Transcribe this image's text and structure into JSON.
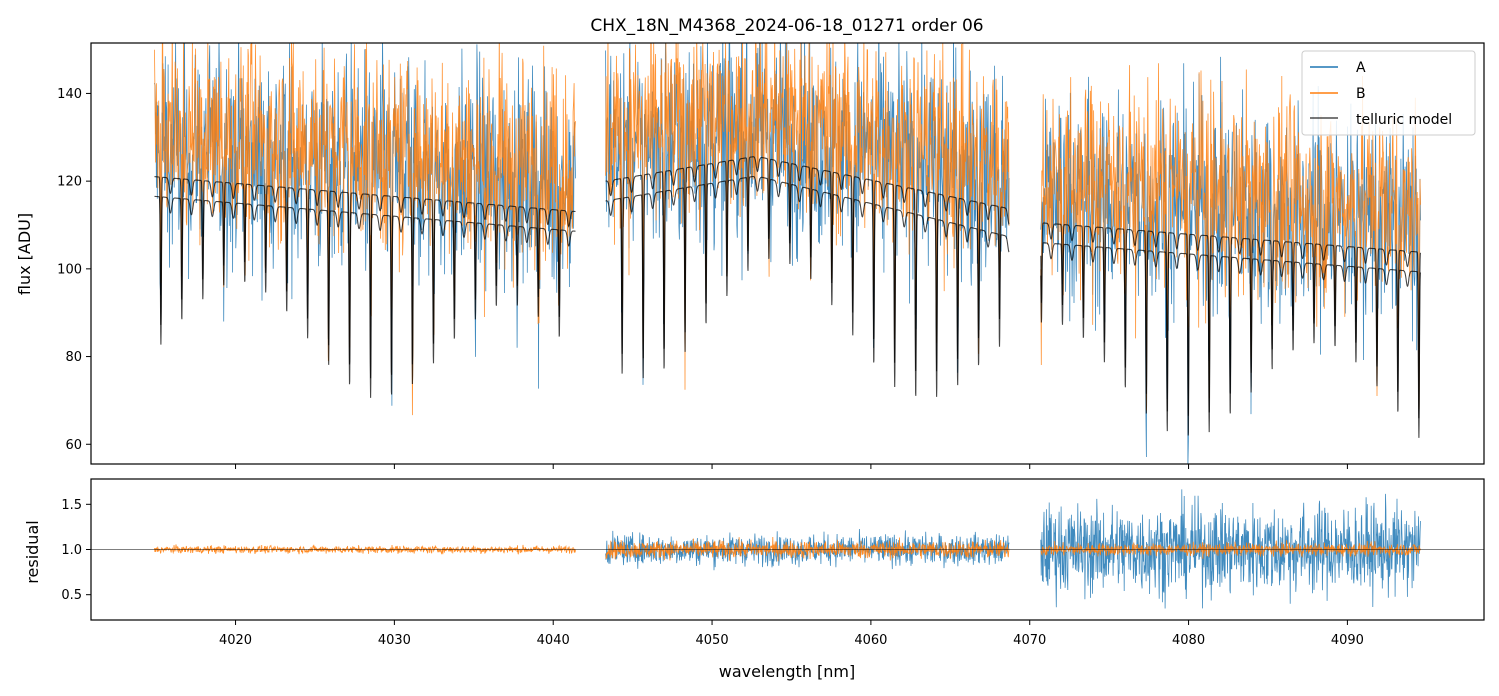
{
  "chart_data": [
    {
      "panel": "top",
      "type": "line",
      "title": "CHX_18N_M4368_2024-06-18_01271  order 06",
      "xlabel": "",
      "ylabel": "flux [ADU]",
      "xlim": [
        4010.9,
        4098.6
      ],
      "ylim": [
        55.5,
        151.5
      ],
      "yticks": [
        60,
        80,
        100,
        120,
        140
      ],
      "xticks": [
        4020,
        4030,
        4040,
        4050,
        4060,
        4070,
        4080,
        4090
      ],
      "segments": [
        [
          4014.9,
          4041.4
        ],
        [
          4043.3,
          4068.7
        ],
        [
          4070.7,
          4094.6
        ]
      ],
      "series": [
        {
          "name": "A",
          "color": "#1f77b4",
          "description": "noisy spectrum, roughly 60-150 ADU"
        },
        {
          "name": "B",
          "color": "#ff7f0e",
          "description": "noisy spectrum, roughly 60-150 ADU"
        },
        {
          "name": "telluric model",
          "color": "#000000",
          "description": "smooth continuum with periodic absorption lines; upper curve ~121 at 4015 declining to ~104 at 4094, lower curve ~116 at 4015 to ~100 at 4094"
        }
      ],
      "legend": [
        "A",
        "B",
        "telluric model"
      ],
      "legend_location": "top-right"
    },
    {
      "panel": "bottom",
      "type": "line",
      "xlabel": "wavelength [nm]",
      "ylabel": "residual",
      "xlim": [
        4010.9,
        4098.6
      ],
      "ylim": [
        0.22,
        1.78
      ],
      "yticks": [
        0.5,
        1.0,
        1.5
      ],
      "ytick_labels": [
        "0.5",
        "1.0",
        "1.5"
      ],
      "xticks": [
        4020,
        4030,
        4040,
        4050,
        4060,
        4070,
        4080,
        4090
      ],
      "reference_line": 1.0,
      "series": [
        {
          "name": "A",
          "color": "#1f77b4",
          "noise_by_segment": [
            0.0,
            0.12,
            0.35
          ]
        },
        {
          "name": "B",
          "color": "#ff7f0e",
          "noise_by_segment": [
            0.03,
            0.07,
            0.05
          ]
        }
      ]
    }
  ]
}
